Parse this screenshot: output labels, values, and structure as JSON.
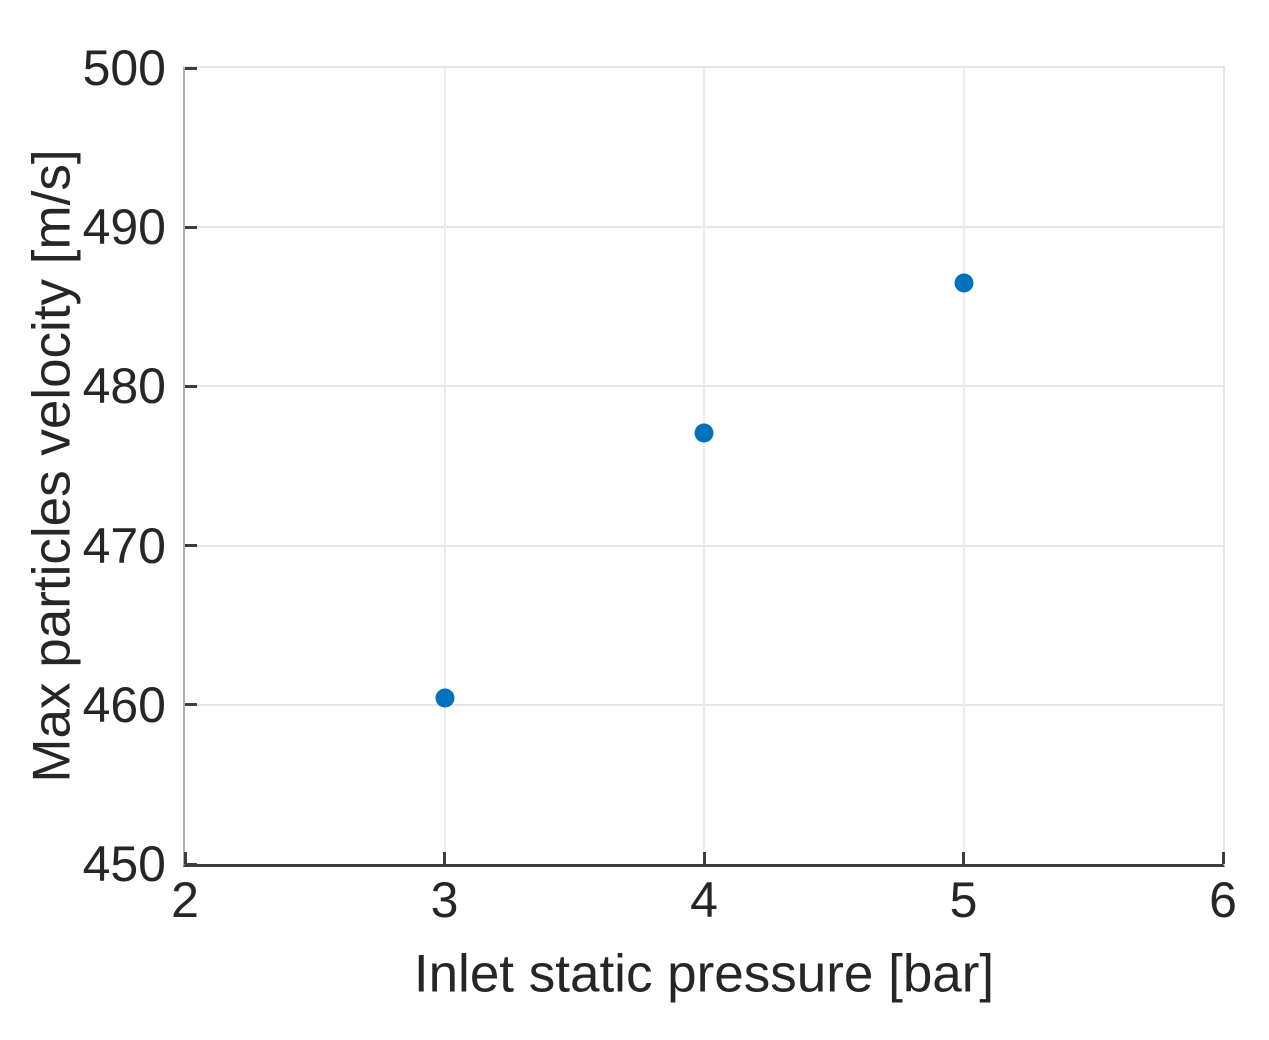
{
  "chart_data": {
    "type": "scatter",
    "x": [
      3,
      4,
      5
    ],
    "y": [
      460.4,
      477.1,
      486.5
    ],
    "xlabel": "Inlet static pressure [bar]",
    "ylabel": "Max particles velocity [m/s]",
    "xlim": [
      2,
      6
    ],
    "ylim": [
      450,
      500
    ],
    "xticks": [
      2,
      3,
      4,
      5,
      6
    ],
    "yticks": [
      450,
      460,
      470,
      480,
      490,
      500
    ],
    "grid": true,
    "legend": false,
    "marker_color": "#0072BD"
  }
}
